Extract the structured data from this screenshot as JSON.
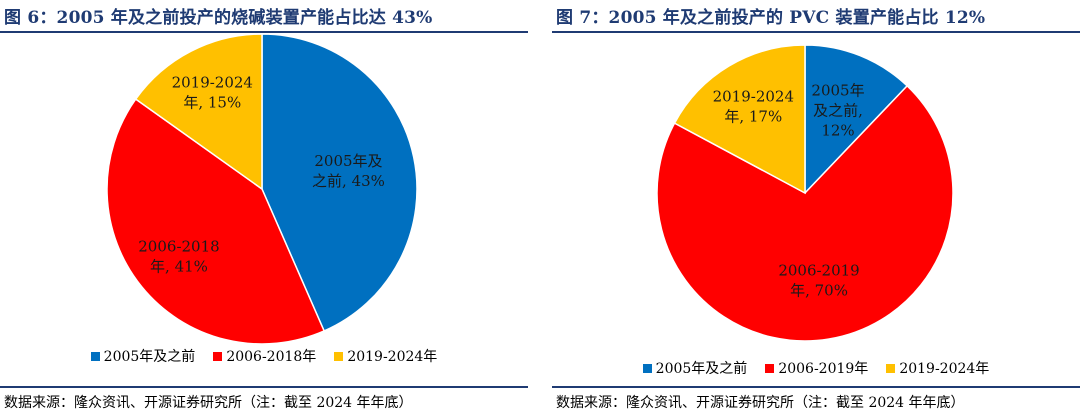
{
  "figures": [
    {
      "title": "图 6：2005 年及之前投产的烧碱装置产能占比达 43%",
      "source": "数据来源：隆众资讯、开源证券研究所（注：截至 2024 年年底）"
    },
    {
      "title": "图 7：2005 年及之前投产的 PVC 装置产能占比 12%",
      "source": "数据来源：隆众资讯、开源证券研究所（注：截至 2024 年年底）"
    }
  ],
  "chart_data": [
    {
      "type": "pie",
      "title": "图 6：2005 年及之前投产的烧碱装置产能占比达 43%",
      "legend_position": "bottom",
      "slices": [
        {
          "name": "2005年及之前",
          "value": 43,
          "color": "#0070c0",
          "label_lines": [
            "2005年及",
            "之前, 43%"
          ]
        },
        {
          "name": "2006-2018年",
          "value": 41,
          "color": "#ff0000",
          "label_lines": [
            "2006-2018",
            "年, 41%"
          ]
        },
        {
          "name": "2019-2024年",
          "value": 15,
          "color": "#ffc000",
          "label_lines": [
            "2019-2024",
            "年, 15%"
          ]
        }
      ]
    },
    {
      "type": "pie",
      "title": "图 7：2005 年及之前投产的 PVC 装置产能占比 12%",
      "legend_position": "bottom",
      "slices": [
        {
          "name": "2005年及之前",
          "value": 12,
          "color": "#0070c0",
          "label_lines": [
            "2005年",
            "及之前,",
            "12%"
          ]
        },
        {
          "name": "2006-2019年",
          "value": 70,
          "color": "#ff0000",
          "label_lines": [
            "2006-2019",
            "年, 70%"
          ]
        },
        {
          "name": "2019-2024年",
          "value": 17,
          "color": "#ffc000",
          "label_lines": [
            "2019-2024",
            "年, 17%"
          ]
        }
      ]
    }
  ]
}
